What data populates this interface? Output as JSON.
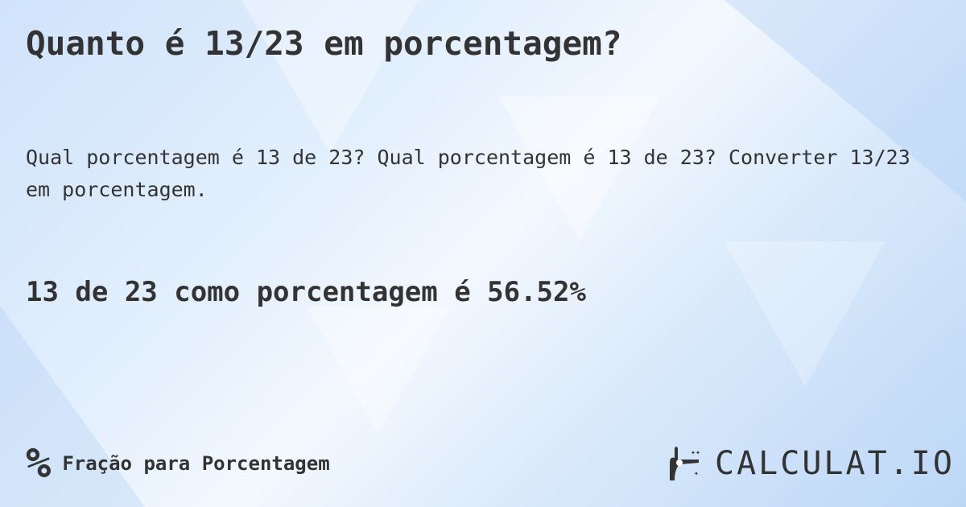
{
  "title": "Quanto é 13/23 em porcentagem?",
  "description": "Qual porcentagem é 13 de 23? Qual porcentagem é 13 de 23? Converter 13/23 em porcentagem.",
  "result": "13 de 23 como porcentagem é 56.52%",
  "footer": {
    "icon": "percent-icon",
    "icon_glyph": "%",
    "category": "Fração para Porcentagem"
  },
  "logo": {
    "text": "CALCULAT.IO"
  }
}
